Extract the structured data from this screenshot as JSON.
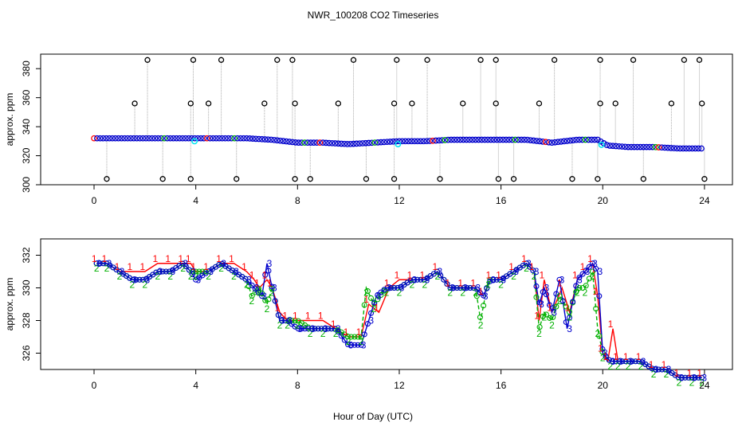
{
  "title": "NWR_100208  CO2 Timeseries",
  "xlabel": "Hour of Day (UTC)",
  "colors": {
    "series1": "#ff0000",
    "series2": "#00b000",
    "series3": "#0000cc",
    "points": "#000000",
    "cyan": "#00e5ee",
    "stems": "#aaaaaa"
  },
  "chart_data": [
    {
      "type": "scatter",
      "panel": "top",
      "ylabel": "approx. ppm",
      "xlim": [
        -2.1,
        25.1
      ],
      "ylim": [
        300,
        390
      ],
      "xticks": [
        0,
        4,
        8,
        12,
        16,
        20,
        24
      ],
      "yticks": [
        300,
        320,
        340,
        360,
        380
      ],
      "ytick_labels": [
        "300",
        "320",
        "340",
        "360",
        "380"
      ],
      "baseline_series": [
        {
          "name": "base",
          "x": [
            0,
            1,
            2,
            3,
            4,
            5,
            6,
            7,
            8,
            9,
            10,
            11,
            12,
            13,
            14,
            15,
            16,
            17,
            18,
            19,
            19.8,
            20.2,
            21,
            22,
            23,
            24
          ],
          "y": [
            332,
            332,
            332,
            332,
            332,
            332,
            332,
            331,
            329,
            329,
            328,
            329,
            330,
            330,
            331,
            331,
            331,
            331,
            329,
            331,
            331,
            327,
            326,
            326,
            325,
            325
          ]
        }
      ],
      "spikes_high": [
        2.1,
        3.9,
        5.0,
        7.2,
        7.8,
        10.2,
        11.9,
        13.1,
        15.2,
        15.8,
        18.1,
        19.9,
        21.2,
        23.2,
        23.8
      ],
      "spikes_mid": [
        1.6,
        3.8,
        4.5,
        6.7,
        7.9,
        9.6,
        11.8,
        12.5,
        14.5,
        15.8,
        17.5,
        19.9,
        20.5,
        22.7,
        23.9
      ],
      "spikes_low": [
        0.5,
        2.7,
        3.8,
        5.6,
        7.9,
        8.5,
        10.7,
        11.8,
        13.6,
        15.9,
        16.5,
        18.8,
        19.8,
        21.6,
        24.0
      ],
      "high_value": 386,
      "mid_value": 356,
      "low_value": 304
    },
    {
      "type": "line",
      "panel": "bottom",
      "ylabel": "approx. ppm",
      "xlim": [
        -2.1,
        25.1
      ],
      "ylim": [
        325,
        333
      ],
      "xticks": [
        0,
        4,
        8,
        12,
        16,
        20,
        24
      ],
      "yticks": [
        326,
        328,
        330,
        332
      ],
      "ytick_labels": [
        "326",
        "328",
        "330",
        "332"
      ],
      "series": [
        {
          "name": "1",
          "label": "1",
          "x": [
            0.1,
            0.5,
            1.0,
            1.5,
            2.0,
            2.5,
            3.0,
            3.5,
            3.8,
            4.0,
            4.5,
            5.0,
            5.5,
            6.0,
            6.3,
            6.5,
            6.8,
            7.0,
            7.3,
            7.6,
            8.0,
            8.5,
            9.0,
            9.5,
            10.0,
            10.5,
            10.8,
            11.2,
            11.6,
            12.0,
            12.5,
            13.0,
            13.5,
            14.0,
            14.5,
            15.0,
            15.3,
            15.6,
            16.0,
            16.5,
            17.0,
            17.3,
            17.5,
            17.7,
            18.0,
            18.4,
            18.7,
            19.0,
            19.3,
            19.6,
            19.8,
            20.0,
            20.2,
            20.4,
            20.6,
            21.0,
            21.5,
            22.0,
            22.5,
            23.0,
            23.5,
            23.9
          ],
          "y": [
            331.5,
            331.5,
            331,
            331,
            331,
            331.5,
            331.5,
            331.5,
            331.5,
            331,
            331,
            331.5,
            331.5,
            331,
            330.5,
            330,
            330.5,
            330,
            328.5,
            328,
            328,
            328,
            328,
            327.5,
            327,
            327,
            329,
            328.5,
            330,
            330.5,
            330.5,
            330.5,
            331,
            330,
            330,
            330,
            329.5,
            330.5,
            330.5,
            331,
            331.5,
            331,
            328,
            330.5,
            328.5,
            330,
            328.5,
            330.5,
            331,
            331.5,
            329.5,
            326,
            325.5,
            327.5,
            325.5,
            325.5,
            325.5,
            325,
            325,
            324.5,
            324.5,
            324.5
          ]
        },
        {
          "name": "2",
          "label": "2",
          "x": [
            0.1,
            0.5,
            1.0,
            1.5,
            2.0,
            2.5,
            3.0,
            3.5,
            3.8,
            4.0,
            4.5,
            5.0,
            5.5,
            6.0,
            6.2,
            6.5,
            6.8,
            7.0,
            7.3,
            7.6,
            8.0,
            8.5,
            9.0,
            9.5,
            10.0,
            10.5,
            10.7,
            11.0,
            11.5,
            12.0,
            12.5,
            13.0,
            13.5,
            14.0,
            14.5,
            15.0,
            15.2,
            15.5,
            16.0,
            16.5,
            17.0,
            17.3,
            17.5,
            17.7,
            18.0,
            18.3,
            18.7,
            19.0,
            19.3,
            19.6,
            19.8,
            20.0,
            20.3,
            20.6,
            21.0,
            21.5,
            22.0,
            22.5,
            23.0,
            23.5,
            23.9
          ],
          "y": [
            331.5,
            331.5,
            331,
            330.5,
            330.5,
            331,
            331,
            331.5,
            331,
            331,
            331,
            331.5,
            331,
            330.5,
            329.5,
            330,
            329,
            330,
            328,
            328,
            328,
            327.5,
            327.5,
            327.5,
            327,
            327,
            330,
            329,
            330,
            330,
            330.5,
            330.5,
            331,
            330,
            330,
            330,
            328,
            330.5,
            330.5,
            331,
            331.5,
            331,
            327.5,
            328.5,
            328,
            329.5,
            328.5,
            330,
            330,
            331,
            327.5,
            326,
            325.5,
            325.5,
            325.5,
            325.5,
            325,
            325,
            324.5,
            324.5,
            324.5
          ]
        },
        {
          "name": "3",
          "label": "3",
          "x": [
            0.1,
            0.5,
            1.0,
            1.5,
            2.0,
            2.5,
            3.0,
            3.5,
            3.8,
            4.0,
            4.5,
            5.0,
            5.5,
            6.0,
            6.3,
            6.6,
            6.8,
            7.0,
            7.3,
            7.6,
            8.0,
            8.5,
            9.0,
            9.5,
            10.0,
            10.5,
            10.8,
            11.1,
            11.5,
            12.0,
            12.5,
            13.0,
            13.5,
            14.0,
            14.5,
            15.0,
            15.3,
            15.6,
            16.0,
            16.5,
            17.0,
            17.3,
            17.5,
            17.7,
            18.0,
            18.3,
            18.6,
            19.0,
            19.3,
            19.6,
            19.8,
            20.0,
            20.3,
            20.6,
            21.0,
            21.5,
            22.0,
            22.5,
            23.0,
            23.5,
            23.9
          ],
          "y": [
            331.5,
            331.5,
            331,
            330.5,
            330.5,
            331,
            331,
            331.5,
            331,
            330.5,
            331,
            331.5,
            331,
            330.5,
            330,
            329.5,
            331.5,
            330,
            328,
            328,
            327.5,
            327.5,
            327.5,
            327.5,
            326.5,
            326.5,
            328,
            329.5,
            330,
            330,
            330.5,
            330.5,
            331,
            330,
            330,
            330,
            329.5,
            330.5,
            330.5,
            331,
            331.5,
            331,
            329,
            330,
            328.5,
            330.5,
            327.5,
            330.5,
            331,
            331.5,
            331,
            326,
            325.5,
            325.5,
            325.5,
            325.5,
            325,
            325,
            324.5,
            324.5,
            324.5
          ]
        }
      ]
    }
  ]
}
